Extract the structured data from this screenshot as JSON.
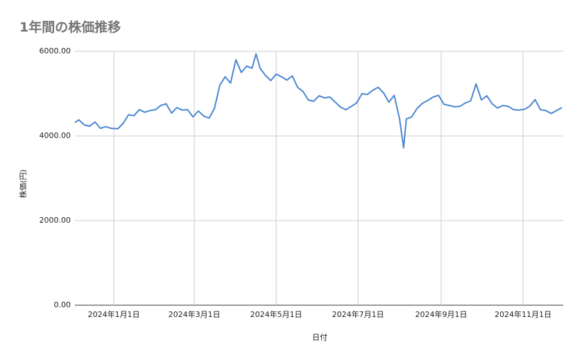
{
  "chart_data": {
    "type": "line",
    "title": "1年間の株価推移",
    "x_label": "日付",
    "y_label": "株価(円)",
    "x": [
      "2023-12-03",
      "2023-12-06",
      "2023-12-10",
      "2023-12-14",
      "2023-12-18",
      "2023-12-22",
      "2023-12-26",
      "2023-12-30",
      "2024-01-04",
      "2024-01-08",
      "2024-01-12",
      "2024-01-16",
      "2024-01-20",
      "2024-01-24",
      "2024-01-28",
      "2024-02-01",
      "2024-02-05",
      "2024-02-09",
      "2024-02-13",
      "2024-02-17",
      "2024-02-21",
      "2024-02-25",
      "2024-02-29",
      "2024-03-04",
      "2024-03-08",
      "2024-03-12",
      "2024-03-16",
      "2024-03-20",
      "2024-03-24",
      "2024-03-28",
      "2024-04-01",
      "2024-04-05",
      "2024-04-09",
      "2024-04-13",
      "2024-04-16",
      "2024-04-19",
      "2024-04-23",
      "2024-04-27",
      "2024-05-01",
      "2024-05-05",
      "2024-05-09",
      "2024-05-13",
      "2024-05-17",
      "2024-05-21",
      "2024-05-25",
      "2024-05-29",
      "2024-06-02",
      "2024-06-06",
      "2024-06-10",
      "2024-06-14",
      "2024-06-18",
      "2024-06-22",
      "2024-06-26",
      "2024-06-30",
      "2024-07-04",
      "2024-07-08",
      "2024-07-12",
      "2024-07-16",
      "2024-07-20",
      "2024-07-24",
      "2024-07-28",
      "2024-08-01",
      "2024-08-04",
      "2024-08-06",
      "2024-08-10",
      "2024-08-14",
      "2024-08-18",
      "2024-08-22",
      "2024-08-26",
      "2024-08-30",
      "2024-09-03",
      "2024-09-07",
      "2024-09-11",
      "2024-09-15",
      "2024-09-19",
      "2024-09-23",
      "2024-09-27",
      "2024-10-01",
      "2024-10-05",
      "2024-10-09",
      "2024-10-13",
      "2024-10-17",
      "2024-10-21",
      "2024-10-25",
      "2024-10-29",
      "2024-11-02",
      "2024-11-06",
      "2024-11-10",
      "2024-11-14",
      "2024-11-18",
      "2024-11-22",
      "2024-11-26",
      "2024-11-30"
    ],
    "series": [
      {
        "name": "株価",
        "color": "#4a86d0",
        "values": [
          4320,
          4380,
          4260,
          4230,
          4330,
          4180,
          4220,
          4180,
          4170,
          4300,
          4500,
          4480,
          4620,
          4560,
          4600,
          4620,
          4720,
          4760,
          4540,
          4670,
          4610,
          4620,
          4450,
          4590,
          4470,
          4420,
          4650,
          5200,
          5400,
          5250,
          5800,
          5500,
          5650,
          5600,
          5940,
          5600,
          5430,
          5310,
          5460,
          5400,
          5320,
          5420,
          5150,
          5050,
          4850,
          4820,
          4950,
          4900,
          4920,
          4800,
          4680,
          4620,
          4700,
          4780,
          5000,
          4980,
          5080,
          5150,
          5020,
          4800,
          4960,
          4400,
          3720,
          4400,
          4450,
          4650,
          4770,
          4840,
          4920,
          4960,
          4750,
          4720,
          4690,
          4700,
          4780,
          4830,
          5230,
          4850,
          4950,
          4760,
          4660,
          4720,
          4700,
          4620,
          4610,
          4630,
          4700,
          4860,
          4620,
          4600,
          4530,
          4600,
          4670
        ]
      }
    ],
    "xlim": [
      "2023-12-03",
      "2024-12-01"
    ],
    "xticks": [
      {
        "value": "2024-01-01",
        "label": "2024年1月1日"
      },
      {
        "value": "2024-03-01",
        "label": "2024年3月1日"
      },
      {
        "value": "2024-05-01",
        "label": "2024年5月1日"
      },
      {
        "value": "2024-07-01",
        "label": "2024年7月1日"
      },
      {
        "value": "2024-09-01",
        "label": "2024年9月1日"
      },
      {
        "value": "2024-11-01",
        "label": "2024年11月1日"
      }
    ],
    "ylim": [
      0,
      6000
    ],
    "yticks": [
      {
        "value": 0,
        "label": "0.00"
      },
      {
        "value": 2000,
        "label": "2000.00"
      },
      {
        "value": 4000,
        "label": "4000.00"
      },
      {
        "value": 6000,
        "label": "6000.00"
      }
    ],
    "grid": true
  }
}
